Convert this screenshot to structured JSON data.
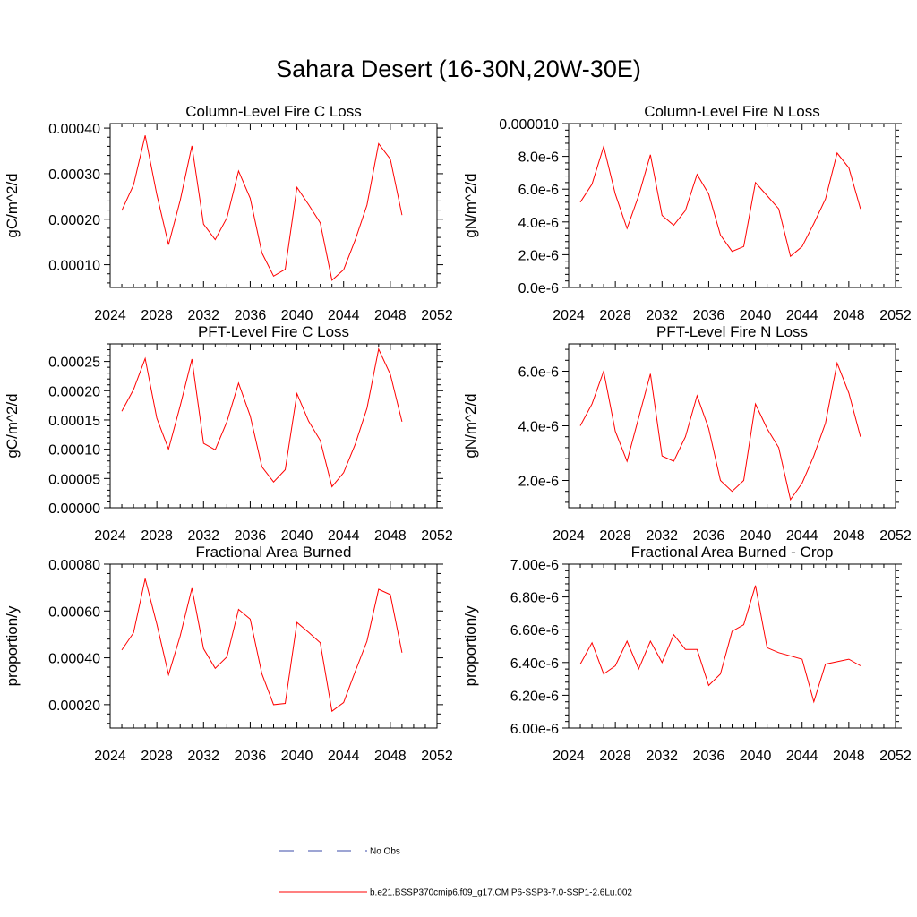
{
  "title": "Sahara Desert (16-30N,20W-30E)",
  "legend": [
    {
      "label": "No Obs",
      "style": "dashed",
      "color": "#3b4ba8"
    },
    {
      "label": "b.e21.BSSP370cmip6.f09_g17.CMIP6-SSP3-7.0-SSP1-2.6Lu.002",
      "style": "solid",
      "color": "#ff0000"
    }
  ],
  "chart_data": [
    {
      "type": "line",
      "title": "Column-Level Fire C Loss",
      "ylabel": "gC/m^2/d",
      "xlim": [
        2024,
        2052
      ],
      "ylim": [
        5e-05,
        0.00041
      ],
      "xticks": [
        "2024",
        "2028",
        "2032",
        "2036",
        "2040",
        "2044",
        "2048",
        "2052"
      ],
      "yticks": [
        {
          "value": 0.0001,
          "label": "0.00010"
        },
        {
          "value": 0.0002,
          "label": "0.00020"
        },
        {
          "value": 0.0003,
          "label": "0.00030"
        },
        {
          "value": 0.0004,
          "label": "0.00040"
        }
      ],
      "x": [
        2025,
        2026,
        2027,
        2028,
        2029,
        2030,
        2031,
        2032,
        2033,
        2034,
        2035,
        2036,
        2037,
        2038,
        2039,
        2040,
        2041,
        2042,
        2043,
        2044,
        2045,
        2046,
        2047,
        2048,
        2049
      ],
      "values": [
        0.000219,
        0.000275,
        0.000384,
        0.000254,
        0.000144,
        0.000241,
        0.000361,
        0.000189,
        0.000155,
        0.000203,
        0.000306,
        0.000246,
        0.000126,
        7.5e-05,
        9e-05,
        0.00027,
        0.000232,
        0.000192,
        6.6e-05,
        8.9e-05,
        0.000155,
        0.000231,
        0.000366,
        0.000332,
        0.000209
      ]
    },
    {
      "type": "line",
      "title": "Column-Level Fire N Loss",
      "ylabel": "gN/m^2/d",
      "xlim": [
        2024,
        2052
      ],
      "ylim": [
        0,
        1e-05
      ],
      "xticks": [
        "2024",
        "2028",
        "2032",
        "2036",
        "2040",
        "2044",
        "2048",
        "2052"
      ],
      "yticks": [
        {
          "value": 0,
          "label": "0.0e-6"
        },
        {
          "value": 2e-06,
          "label": "2.0e-6"
        },
        {
          "value": 4e-06,
          "label": "4.0e-6"
        },
        {
          "value": 6e-06,
          "label": "6.0e-6"
        },
        {
          "value": 8e-06,
          "label": "8.0e-6"
        },
        {
          "value": 1e-05,
          "label": "0.000010"
        }
      ],
      "x": [
        2025,
        2026,
        2027,
        2028,
        2029,
        2030,
        2031,
        2032,
        2033,
        2034,
        2035,
        2036,
        2037,
        2038,
        2039,
        2040,
        2041,
        2042,
        2043,
        2044,
        2045,
        2046,
        2047,
        2048,
        2049
      ],
      "values": [
        5.2e-06,
        6.3e-06,
        8.6e-06,
        5.7e-06,
        3.6e-06,
        5.6e-06,
        8.1e-06,
        4.4e-06,
        3.8e-06,
        4.7e-06,
        6.9e-06,
        5.7e-06,
        3.2e-06,
        2.2e-06,
        2.5e-06,
        6.4e-06,
        5.6e-06,
        4.8e-06,
        1.9e-06,
        2.5e-06,
        3.9e-06,
        5.4e-06,
        8.2e-06,
        7.3e-06,
        4.8e-06
      ]
    },
    {
      "type": "line",
      "title": "PFT-Level Fire C Loss",
      "ylabel": "gC/m^2/d",
      "xlim": [
        2024,
        2052
      ],
      "ylim": [
        0,
        0.00028
      ],
      "xticks": [
        "2024",
        "2028",
        "2032",
        "2036",
        "2040",
        "2044",
        "2048",
        "2052"
      ],
      "yticks": [
        {
          "value": 0,
          "label": "0.00000"
        },
        {
          "value": 5e-05,
          "label": "0.00005"
        },
        {
          "value": 0.0001,
          "label": "0.00010"
        },
        {
          "value": 0.00015,
          "label": "0.00015"
        },
        {
          "value": 0.0002,
          "label": "0.00020"
        },
        {
          "value": 0.00025,
          "label": "0.00025"
        }
      ],
      "x": [
        2025,
        2026,
        2027,
        2028,
        2029,
        2030,
        2031,
        2032,
        2033,
        2034,
        2035,
        2036,
        2037,
        2038,
        2039,
        2040,
        2041,
        2042,
        2043,
        2044,
        2045,
        2046,
        2047,
        2048,
        2049
      ],
      "values": [
        0.000165,
        0.000202,
        0.000255,
        0.000153,
        0.0001,
        0.000174,
        0.000254,
        0.00011,
        9.9e-05,
        0.000147,
        0.000213,
        0.000157,
        7e-05,
        4.4e-05,
        6.5e-05,
        0.000195,
        0.000148,
        0.000115,
        3.6e-05,
        6e-05,
        0.000109,
        0.00017,
        0.000271,
        0.000228,
        0.000147
      ]
    },
    {
      "type": "line",
      "title": "PFT-Level Fire N Loss",
      "ylabel": "gN/m^2/d",
      "xlim": [
        2024,
        2052
      ],
      "ylim": [
        1e-06,
        7e-06
      ],
      "xticks": [
        "2024",
        "2028",
        "2032",
        "2036",
        "2040",
        "2044",
        "2048",
        "2052"
      ],
      "yticks": [
        {
          "value": 2e-06,
          "label": "2.0e-6"
        },
        {
          "value": 4e-06,
          "label": "4.0e-6"
        },
        {
          "value": 6e-06,
          "label": "6.0e-6"
        }
      ],
      "x": [
        2025,
        2026,
        2027,
        2028,
        2029,
        2030,
        2031,
        2032,
        2033,
        2034,
        2035,
        2036,
        2037,
        2038,
        2039,
        2040,
        2041,
        2042,
        2043,
        2044,
        2045,
        2046,
        2047,
        2048,
        2049
      ],
      "values": [
        4e-06,
        4.8e-06,
        6e-06,
        3.8e-06,
        2.7e-06,
        4.3e-06,
        5.9e-06,
        2.9e-06,
        2.7e-06,
        3.6e-06,
        5.1e-06,
        3.9e-06,
        2e-06,
        1.6e-06,
        2e-06,
        4.8e-06,
        3.9e-06,
        3.2e-06,
        1.3e-06,
        1.9e-06,
        2.9e-06,
        4.1e-06,
        6.3e-06,
        5.2e-06,
        3.6e-06
      ]
    },
    {
      "type": "line",
      "title": "Fractional Area Burned",
      "ylabel": "proportion/y",
      "xlim": [
        2024,
        2052
      ],
      "ylim": [
        0.0001,
        0.0008
      ],
      "xticks": [
        "2024",
        "2028",
        "2032",
        "2036",
        "2040",
        "2044",
        "2048",
        "2052"
      ],
      "yticks": [
        {
          "value": 0.0002,
          "label": "0.00020"
        },
        {
          "value": 0.0004,
          "label": "0.00040"
        },
        {
          "value": 0.0006,
          "label": "0.00060"
        },
        {
          "value": 0.0008,
          "label": "0.00080"
        }
      ],
      "x": [
        2025,
        2026,
        2027,
        2028,
        2029,
        2030,
        2031,
        2032,
        2033,
        2034,
        2035,
        2036,
        2037,
        2038,
        2039,
        2040,
        2041,
        2042,
        2043,
        2044,
        2045,
        2046,
        2047,
        2048,
        2049
      ],
      "values": [
        0.000433,
        0.000507,
        0.000738,
        0.000544,
        0.000328,
        0.000493,
        0.000697,
        0.000439,
        0.000355,
        0.000404,
        0.000607,
        0.000565,
        0.000331,
        0.0002,
        0.000205,
        0.000551,
        0.000509,
        0.000464,
        0.000172,
        0.000209,
        0.000343,
        0.000471,
        0.000693,
        0.00067,
        0.000422
      ]
    },
    {
      "type": "line",
      "title": "Fractional Area Burned - Crop",
      "ylabel": "proportion/y",
      "xlim": [
        2024,
        2052
      ],
      "ylim": [
        6e-06,
        7e-06
      ],
      "xticks": [
        "2024",
        "2028",
        "2032",
        "2036",
        "2040",
        "2044",
        "2048",
        "2052"
      ],
      "yticks": [
        {
          "value": 6e-06,
          "label": "6.00e-6"
        },
        {
          "value": 6.2e-06,
          "label": "6.20e-6"
        },
        {
          "value": 6.4e-06,
          "label": "6.40e-6"
        },
        {
          "value": 6.6e-06,
          "label": "6.60e-6"
        },
        {
          "value": 6.8e-06,
          "label": "6.80e-6"
        },
        {
          "value": 7e-06,
          "label": "7.00e-6"
        }
      ],
      "x": [
        2025,
        2026,
        2027,
        2028,
        2029,
        2030,
        2031,
        2032,
        2033,
        2034,
        2035,
        2036,
        2037,
        2038,
        2039,
        2040,
        2041,
        2042,
        2044,
        2045,
        2046,
        2048,
        2049
      ],
      "values": [
        6.39e-06,
        6.52e-06,
        6.33e-06,
        6.38e-06,
        6.53e-06,
        6.36e-06,
        6.53e-06,
        6.4e-06,
        6.57e-06,
        6.48e-06,
        6.48e-06,
        6.26e-06,
        6.33e-06,
        6.59e-06,
        6.63e-06,
        6.87e-06,
        6.49e-06,
        6.46e-06,
        6.42e-06,
        6.16e-06,
        6.39e-06,
        6.42e-06,
        6.38e-06
      ]
    }
  ]
}
